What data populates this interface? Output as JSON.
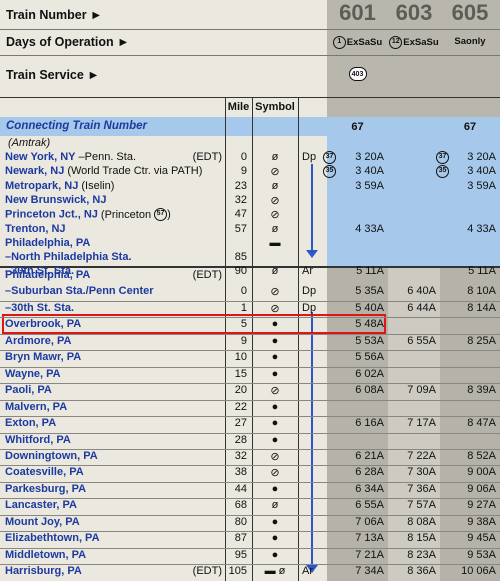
{
  "header": {
    "train_number_label": "Train Number ►",
    "days_label": "Days of Operation ►",
    "service_label": "Train Service ►",
    "mile_label": "Mile",
    "symbol_label": "Symbol",
    "connecting_label": "Connecting Train Number",
    "amtrak": "(Amtrak)",
    "trains": [
      {
        "number": "601",
        "days_ref": "1",
        "days": "ExSaSu",
        "service": "403",
        "connecting": "67"
      },
      {
        "number": "603",
        "days_ref": "12",
        "days": "ExSaSu"
      },
      {
        "number": "605",
        "days": "Saonly",
        "connecting": "67"
      }
    ]
  },
  "amtrak_rows": [
    {
      "name": "New York, NY",
      "detail": "–Penn. Sta.",
      "tz": "(EDT)",
      "mile": 0,
      "symbol": "ø",
      "dp": "Dp",
      "refs": {
        "0": "37",
        "2": "37"
      },
      "times": {
        "0": "3 20A",
        "2": "3 20A"
      }
    },
    {
      "name": "Newark, NJ",
      "detail": "(World Trade Ctr. via PATH)",
      "mile": 9,
      "symbol": "⊘",
      "refs": {
        "0": "35",
        "2": "35"
      },
      "times": {
        "0": "3 40A",
        "2": "3 40A"
      }
    },
    {
      "name": "Metropark, NJ",
      "detail": "(Iselin)",
      "mile": 23,
      "symbol": "ø",
      "times": {
        "0": "3 59A",
        "2": "3 59A"
      }
    },
    {
      "name": "New Brunswick, NJ",
      "mile": 32,
      "symbol": "⊘"
    },
    {
      "name": "Princeton Jct., NJ",
      "detail": "(Princeton",
      "detail_ref": "57",
      "detail_end": ")",
      "mile": 47,
      "symbol": "⊘"
    },
    {
      "name": "Trenton, NJ",
      "mile": 57,
      "symbol": "ø",
      "times": {
        "0": "4 33A",
        "2": "4 33A"
      }
    },
    {
      "name": "Philadelphia, PA",
      "symbol": "▬"
    },
    {
      "name": "–North Philadelphia Sta.",
      "mile": 85
    },
    {
      "name": "–30th St. Sta.",
      "mile": 90,
      "symbol": "ø",
      "dp": "Ar",
      "times": {
        "0": "5 11A",
        "2": "5 11A"
      }
    }
  ],
  "septa_rows": [
    {
      "name": "Philadelphia, PA",
      "tz": "(EDT)"
    },
    {
      "name": "–Suburban Sta./Penn Center",
      "mile": 0,
      "symbol": "⊘",
      "dp": "Dp",
      "times": {
        "0": "5 35A",
        "1": "6 40A",
        "2": "8 10A"
      }
    },
    {
      "name": "–30th St. Sta.",
      "mile": 1,
      "symbol": "⊘",
      "dp": "Dp",
      "times": {
        "0": "5 40A",
        "1": "6 44A",
        "2": "8 14A"
      }
    },
    {
      "name": "Overbrook, PA",
      "mile": 5,
      "symbol": "●",
      "times": {
        "0": "5 48A"
      }
    },
    {
      "name": "Ardmore, PA",
      "mile": 9,
      "symbol": "●",
      "times": {
        "0": "5 53A",
        "1": "6 55A",
        "2": "8 25A"
      }
    },
    {
      "name": "Bryn Mawr, PA",
      "mile": 10,
      "symbol": "●",
      "times": {
        "0": "5 56A"
      }
    },
    {
      "name": "Wayne, PA",
      "mile": 15,
      "symbol": "●",
      "times": {
        "0": "6 02A"
      }
    },
    {
      "name": "Paoli, PA",
      "mile": 20,
      "symbol": "⊘",
      "times": {
        "0": "6 08A",
        "1": "7 09A",
        "2": "8 39A"
      }
    },
    {
      "name": "Malvern, PA",
      "mile": 22,
      "symbol": "●"
    },
    {
      "name": "Exton, PA",
      "mile": 27,
      "symbol": "●",
      "times": {
        "0": "6 16A",
        "1": "7 17A",
        "2": "8 47A"
      }
    },
    {
      "name": "Whitford, PA",
      "mile": 28,
      "symbol": "●"
    },
    {
      "name": "Downingtown, PA",
      "mile": 32,
      "symbol": "⊘",
      "times": {
        "0": "6 21A",
        "1": "7 22A",
        "2": "8 52A"
      }
    },
    {
      "name": "Coatesville, PA",
      "mile": 38,
      "symbol": "⊘",
      "times": {
        "0": "6 28A",
        "1": "7 30A",
        "2": "9 00A"
      }
    },
    {
      "name": "Parkesburg, PA",
      "mile": 44,
      "symbol": "●",
      "times": {
        "0": "6 34A",
        "1": "7 36A",
        "2": "9 06A"
      }
    },
    {
      "name": "Lancaster, PA",
      "mile": 68,
      "symbol": "ø",
      "times": {
        "0": "6 55A",
        "1": "7 57A",
        "2": "9 27A"
      }
    },
    {
      "name": "Mount Joy, PA",
      "mile": 80,
      "symbol": "●",
      "times": {
        "0": "7 06A",
        "1": "8 08A",
        "2": "9 38A"
      }
    },
    {
      "name": "Elizabethtown, PA",
      "mile": 87,
      "symbol": "●",
      "times": {
        "0": "7 13A",
        "1": "8 15A",
        "2": "9 45A"
      }
    },
    {
      "name": "Middletown, PA",
      "mile": 95,
      "symbol": "●",
      "times": {
        "0": "7 21A",
        "1": "8 23A",
        "2": "9 53A"
      }
    },
    {
      "name": "Harrisburg, PA",
      "tz": "(EDT)",
      "mile": 105,
      "symbol": "▬ ø",
      "dp": "Ar",
      "times": {
        "0": "7 34A",
        "1": "8 36A",
        "2": "10 06A"
      }
    }
  ]
}
